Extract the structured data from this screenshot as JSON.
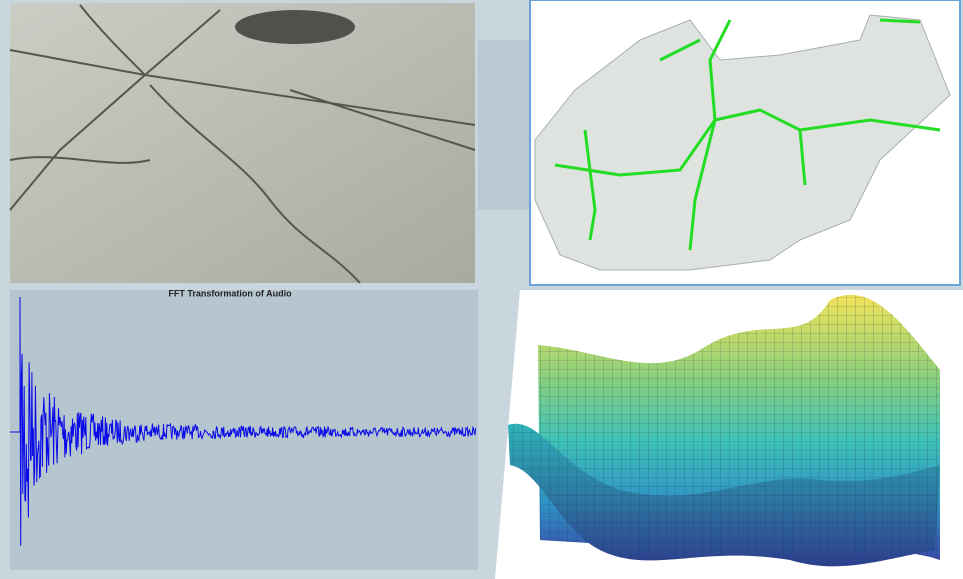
{
  "fft_title": "FFT Transformation of Audio"
}
